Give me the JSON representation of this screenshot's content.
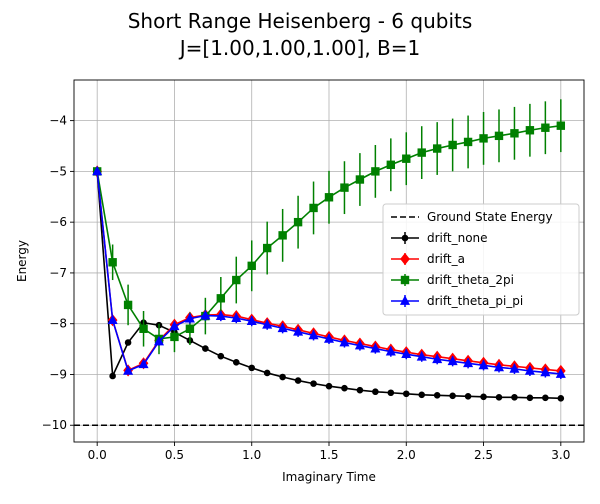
{
  "chart_data": {
    "type": "line",
    "title": [
      "Short Range Heisenberg - 6 qubits",
      "J=[1.00,1.00,1.00], B=1"
    ],
    "xlabel": "Imaginary Time",
    "ylabel": "Energy",
    "xlim": [
      -0.15,
      3.15
    ],
    "ylim": [
      -10.33,
      -3.2
    ],
    "xticks": [
      0.0,
      0.5,
      1.0,
      1.5,
      2.0,
      2.5,
      3.0
    ],
    "xtick_labels": [
      "0.0",
      "0.5",
      "1.0",
      "1.5",
      "2.0",
      "2.5",
      "3.0"
    ],
    "yticks": [
      -10,
      -9,
      -8,
      -7,
      -6,
      -5,
      -4
    ],
    "ytick_labels": [
      "−10",
      "−9",
      "−8",
      "−7",
      "−6",
      "−5",
      "−4"
    ],
    "grid": true,
    "legend_position": "center-right",
    "reference_line": {
      "name": "Ground State Energy",
      "y": -10.0,
      "color": "#000000",
      "dash": "dashed"
    },
    "x": [
      0.0,
      0.1,
      0.2,
      0.3,
      0.4,
      0.5,
      0.6,
      0.7,
      0.8,
      0.9,
      1.0,
      1.1,
      1.2,
      1.3,
      1.4,
      1.5,
      1.6,
      1.7,
      1.8,
      1.9,
      2.0,
      2.1,
      2.2,
      2.3,
      2.4,
      2.5,
      2.6,
      2.7,
      2.8,
      2.9,
      3.0
    ],
    "series": [
      {
        "name": "drift_none",
        "color": "#000000",
        "marker": "circle",
        "values": [
          -5.0,
          -9.03,
          -8.37,
          -7.98,
          -8.03,
          -8.17,
          -8.33,
          -8.49,
          -8.64,
          -8.76,
          -8.87,
          -8.97,
          -9.05,
          -9.12,
          -9.18,
          -9.23,
          -9.27,
          -9.31,
          -9.34,
          -9.36,
          -9.38,
          -9.4,
          -9.41,
          -9.42,
          -9.43,
          -9.44,
          -9.45,
          -9.45,
          -9.46,
          -9.46,
          -9.47
        ],
        "errors": [
          0.0,
          0.0,
          0.0,
          0.0,
          0.0,
          0.0,
          0.0,
          0.0,
          0.0,
          0.0,
          0.0,
          0.0,
          0.0,
          0.0,
          0.0,
          0.0,
          0.0,
          0.0,
          0.0,
          0.0,
          0.0,
          0.0,
          0.0,
          0.0,
          0.0,
          0.0,
          0.0,
          0.0,
          0.0,
          0.0,
          0.0
        ]
      },
      {
        "name": "drift_a",
        "color": "#ff0000",
        "marker": "diamond",
        "values": [
          -5.0,
          -7.93,
          -8.92,
          -8.78,
          -8.33,
          -8.02,
          -7.88,
          -7.83,
          -7.82,
          -7.85,
          -7.92,
          -7.99,
          -8.05,
          -8.12,
          -8.19,
          -8.26,
          -8.33,
          -8.39,
          -8.45,
          -8.51,
          -8.56,
          -8.61,
          -8.65,
          -8.69,
          -8.73,
          -8.77,
          -8.81,
          -8.84,
          -8.87,
          -8.9,
          -8.93
        ],
        "errors": [
          0.0,
          0.05,
          0.05,
          0.07,
          0.08,
          0.09,
          0.1,
          0.1,
          0.1,
          0.1,
          0.1,
          0.1,
          0.1,
          0.1,
          0.1,
          0.1,
          0.1,
          0.1,
          0.1,
          0.1,
          0.1,
          0.1,
          0.1,
          0.1,
          0.1,
          0.1,
          0.1,
          0.1,
          0.1,
          0.1,
          0.1
        ]
      },
      {
        "name": "drift_theta_2pi",
        "color": "#008000",
        "marker": "square",
        "values": [
          -5.0,
          -6.79,
          -7.63,
          -8.1,
          -8.3,
          -8.26,
          -8.1,
          -7.85,
          -7.5,
          -7.14,
          -6.86,
          -6.51,
          -6.26,
          -6.0,
          -5.72,
          -5.51,
          -5.32,
          -5.16,
          -5.0,
          -4.87,
          -4.75,
          -4.63,
          -4.55,
          -4.48,
          -4.42,
          -4.35,
          -4.3,
          -4.25,
          -4.19,
          -4.14,
          -4.1
        ],
        "errors": [
          0.0,
          0.35,
          0.4,
          0.35,
          0.3,
          0.3,
          0.32,
          0.36,
          0.42,
          0.46,
          0.5,
          0.52,
          0.52,
          0.52,
          0.52,
          0.52,
          0.52,
          0.52,
          0.52,
          0.52,
          0.52,
          0.52,
          0.52,
          0.52,
          0.52,
          0.52,
          0.52,
          0.52,
          0.52,
          0.52,
          0.52
        ]
      },
      {
        "name": "drift_theta_pi_pi",
        "color": "#0000ff",
        "marker": "triangle-up",
        "values": [
          -5.0,
          -7.93,
          -8.93,
          -8.8,
          -8.35,
          -8.05,
          -7.9,
          -7.84,
          -7.85,
          -7.89,
          -7.95,
          -8.02,
          -8.09,
          -8.16,
          -8.23,
          -8.3,
          -8.37,
          -8.43,
          -8.49,
          -8.55,
          -8.6,
          -8.65,
          -8.7,
          -8.74,
          -8.78,
          -8.82,
          -8.86,
          -8.89,
          -8.93,
          -8.96,
          -8.99
        ],
        "errors": [
          0.0,
          0.05,
          0.05,
          0.07,
          0.08,
          0.09,
          0.1,
          0.1,
          0.1,
          0.1,
          0.1,
          0.1,
          0.1,
          0.1,
          0.1,
          0.1,
          0.1,
          0.1,
          0.1,
          0.1,
          0.1,
          0.1,
          0.1,
          0.1,
          0.1,
          0.1,
          0.1,
          0.1,
          0.1,
          0.1,
          0.1
        ]
      }
    ]
  }
}
